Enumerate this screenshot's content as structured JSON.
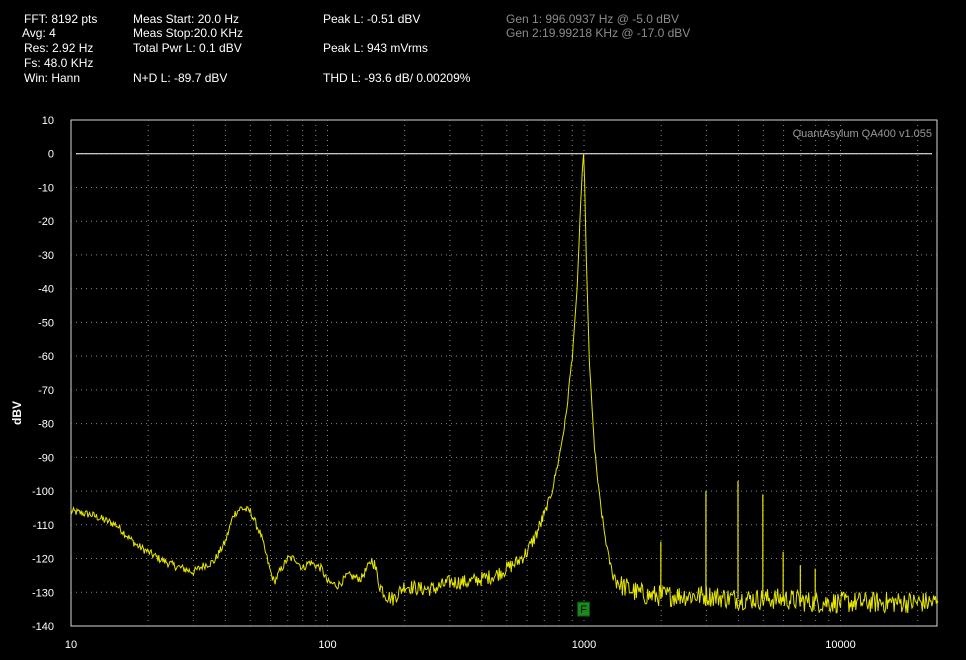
{
  "header": {
    "col1": [
      "FFT: 8192 pts",
      "Avg: 4",
      "Res: 2.92 Hz",
      "Fs: 48.0 KHz",
      "Win: Hann"
    ],
    "col2": [
      "Meas Start: 20.0 Hz",
      "Meas Stop:20.0 KHz",
      "Total Pwr L: 0.1 dBV",
      "N+D L: -89.7 dBV"
    ],
    "col3": [
      "Peak L: -0.51 dBV",
      "Peak L: 943 mVrms",
      "THD L: -93.6 dB/ 0.00209%"
    ],
    "gen": [
      "Gen 1: 996.0937 Hz @ -5.0  dBV",
      "Gen 2:19.99218 KHz @ -17.0  dBV"
    ]
  },
  "chart_data": {
    "type": "line",
    "watermark": "QuantAsylum QA400 v1.055",
    "ylabel": "dBV",
    "xscale": "log",
    "xlim": [
      10,
      24000
    ],
    "ylim": [
      -140,
      10
    ],
    "x_ticks": [
      "10",
      "100",
      "1000",
      "10000"
    ],
    "y_ticks": [
      "10",
      "0",
      "-10",
      "-20",
      "-30",
      "-40",
      "-50",
      "-60",
      "-70",
      "-80",
      "-90",
      "-100",
      "-110",
      "-120",
      "-130",
      "-140"
    ],
    "grid": true,
    "reference_line_dbv": 0,
    "marker": {
      "label": "F",
      "x": 996,
      "y": -135
    },
    "series": [
      {
        "color": "#e6e600",
        "x": [
          10,
          12,
          15,
          18,
          22,
          25,
          30,
          33,
          36,
          40,
          43,
          46,
          50,
          55,
          60,
          62,
          65,
          70,
          75,
          80,
          85,
          90,
          95,
          100,
          110,
          120,
          135,
          150,
          160,
          170,
          180,
          190,
          200,
          230,
          260,
          300,
          350,
          400,
          450,
          500,
          550,
          600,
          650,
          700,
          750,
          800,
          850,
          900,
          940,
          970,
          985,
          996,
          1005,
          1020,
          1050,
          1100,
          1150,
          1200,
          1250,
          1300,
          1400,
          1600,
          1800,
          2000,
          2500,
          3000,
          4000,
          5000,
          6000,
          8000,
          10000,
          14000,
          18000,
          22000,
          24000
        ],
        "y": [
          -106,
          -107,
          -110,
          -116,
          -120,
          -122,
          -124,
          -122,
          -121,
          -115,
          -107,
          -105,
          -106,
          -113,
          -124,
          -127,
          -124,
          -120,
          -120,
          -123,
          -121,
          -122,
          -123,
          -127,
          -128,
          -125,
          -126,
          -120,
          -128,
          -131,
          -132,
          -130,
          -128,
          -129,
          -129,
          -127,
          -127,
          -126,
          -125,
          -123,
          -121,
          -118,
          -113,
          -107,
          -100,
          -90,
          -78,
          -60,
          -40,
          -15,
          -5,
          0,
          -8,
          -30,
          -62,
          -88,
          -102,
          -112,
          -120,
          -125,
          -128,
          -130,
          -131,
          -131,
          -131,
          -131,
          -132,
          -132,
          -132,
          -133,
          -133,
          -133,
          -133,
          -133,
          -133
        ]
      }
    ],
    "spurs": [
      {
        "x": 1993,
        "y": -115
      },
      {
        "x": 2988,
        "y": -100
      },
      {
        "x": 3984,
        "y": -97
      },
      {
        "x": 4980,
        "y": -101
      },
      {
        "x": 5976,
        "y": -118
      },
      {
        "x": 6972,
        "y": -122
      },
      {
        "x": 7968,
        "y": -123
      }
    ]
  }
}
